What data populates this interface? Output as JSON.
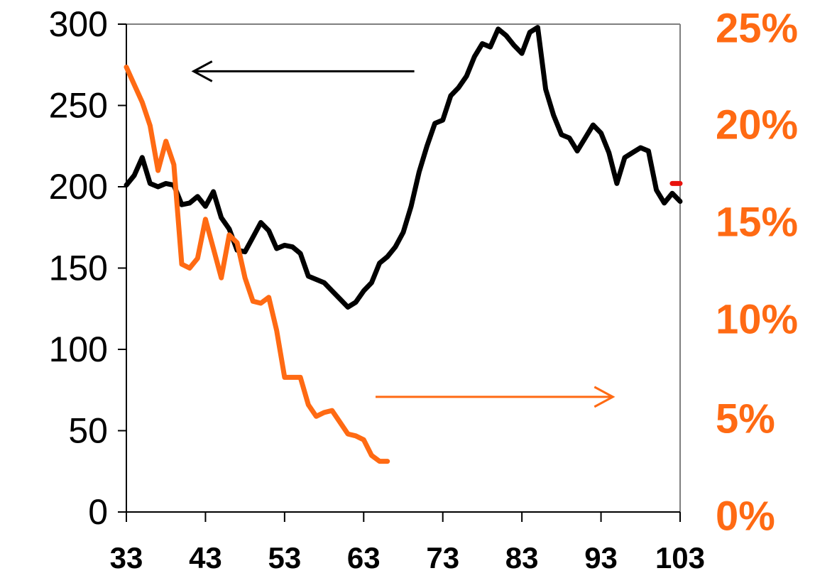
{
  "chart_data": {
    "type": "line",
    "title": "",
    "xlabel": "",
    "ylabel": "",
    "x_ticks": [
      "33",
      "43",
      "53",
      "63",
      "73",
      "83",
      "93",
      "103"
    ],
    "xlim": [
      33,
      103
    ],
    "y_left_ticks": [
      "0",
      "50",
      "100",
      "150",
      "200",
      "250",
      "300"
    ],
    "y_left_lim": [
      0,
      300
    ],
    "y_right_ticks": [
      "0%",
      "5%",
      "10%",
      "15%",
      "20%",
      "25%"
    ],
    "y_right_lim": [
      0,
      25
    ],
    "grid": false,
    "colors": {
      "left_series": "#000000",
      "right_series": "#FF6A13",
      "marker": "#E8120C",
      "axis": "#7F7F7F"
    },
    "series": [
      {
        "axis": "left",
        "x": [
          33,
          34,
          35,
          36,
          37,
          38,
          39,
          40,
          41,
          42,
          43,
          44,
          45,
          46,
          47,
          48,
          49,
          50,
          51,
          52,
          53,
          54,
          55,
          56,
          57,
          58,
          59,
          60,
          61,
          62,
          63,
          64,
          65,
          66,
          67,
          68,
          69,
          70,
          71,
          72,
          73,
          74,
          75,
          76,
          77,
          78,
          79,
          80,
          81,
          82,
          83,
          84,
          85,
          86,
          87,
          88,
          89,
          90,
          91,
          92,
          93,
          94,
          95,
          96,
          97,
          98,
          99,
          100,
          101,
          102,
          103
        ],
        "values": [
          201,
          207,
          218,
          202,
          200,
          202,
          201,
          189,
          190,
          194,
          188,
          197,
          181,
          174,
          161,
          160,
          169,
          178,
          173,
          162,
          164,
          163,
          159,
          145,
          143,
          141,
          136,
          131,
          126,
          129,
          136,
          141,
          153,
          157,
          163,
          172,
          188,
          209,
          225,
          239,
          241,
          256,
          261,
          268,
          280,
          288,
          286,
          297,
          293,
          287,
          282,
          295,
          298,
          260,
          244,
          232,
          230,
          222,
          230,
          238,
          233,
          221,
          202,
          218,
          221,
          224,
          222,
          198,
          190,
          196,
          191
        ]
      },
      {
        "axis": "right",
        "x": [
          33,
          34,
          35,
          36,
          37,
          38,
          39,
          40,
          41,
          42,
          43,
          44,
          45,
          46,
          47,
          48,
          49,
          50,
          51,
          52,
          53,
          54,
          55,
          56,
          57,
          58,
          59,
          60,
          61,
          62,
          63,
          64,
          65,
          66
        ],
        "values": [
          22.8,
          21.9,
          21.0,
          19.8,
          17.5,
          19.0,
          17.8,
          12.7,
          12.5,
          13.0,
          15.0,
          13.5,
          12.0,
          14.2,
          13.8,
          12.0,
          10.8,
          10.7,
          11.0,
          9.3,
          6.9,
          6.9,
          6.9,
          5.5,
          4.9,
          5.1,
          5.2,
          4.6,
          4.0,
          3.9,
          3.7,
          2.9,
          2.6,
          2.6
        ]
      },
      {
        "axis": "left",
        "x": [
          102,
          103
        ],
        "values": [
          202,
          202
        ]
      }
    ],
    "annotations": [
      {
        "type": "arrow",
        "direction": "left",
        "color": "#000000",
        "x_from": 69.4,
        "x_to": 41.5,
        "y": 271,
        "axis": "left"
      },
      {
        "type": "arrow",
        "direction": "right",
        "color": "#FF6A13",
        "x_from": 64.5,
        "x_to": 94.5,
        "y": 5.9,
        "axis": "right"
      }
    ]
  }
}
